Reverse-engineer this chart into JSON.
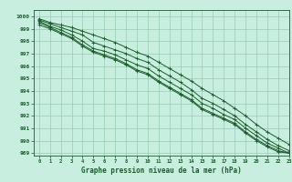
{
  "xlabel": "Graphe pression niveau de la mer (hPa)",
  "background_color": "#c8eee0",
  "plot_bg_color": "#c8eee0",
  "grid_color": "#99ccb3",
  "line_color": "#1a5c2a",
  "xlim": [
    -0.5,
    23
  ],
  "ylim": [
    988.8,
    1000.5
  ],
  "yticks": [
    989,
    990,
    991,
    992,
    993,
    994,
    995,
    996,
    997,
    998,
    999,
    1000
  ],
  "xticks": [
    0,
    1,
    2,
    3,
    4,
    5,
    6,
    7,
    8,
    9,
    10,
    11,
    12,
    13,
    14,
    15,
    16,
    17,
    18,
    19,
    20,
    21,
    22,
    23
  ],
  "lines": [
    {
      "x": [
        0,
        1,
        2,
        3,
        4,
        5,
        6,
        7,
        8,
        9,
        10,
        11,
        12,
        13,
        14,
        15,
        16,
        17,
        18,
        19,
        20,
        21,
        22,
        23
      ],
      "y": [
        999.8,
        999.5,
        999.3,
        999.1,
        998.8,
        998.5,
        998.2,
        997.9,
        997.5,
        997.1,
        996.8,
        996.3,
        995.8,
        995.3,
        994.8,
        994.2,
        993.7,
        993.2,
        992.6,
        992.0,
        991.3,
        990.7,
        990.2,
        989.7
      ]
    },
    {
      "x": [
        0,
        1,
        2,
        3,
        4,
        5,
        6,
        7,
        8,
        9,
        10,
        11,
        12,
        13,
        14,
        15,
        16,
        17,
        18,
        19,
        20,
        21,
        22,
        23
      ],
      "y": [
        999.7,
        999.4,
        999.1,
        998.8,
        998.5,
        997.9,
        997.6,
        997.3,
        997.0,
        996.6,
        996.3,
        995.7,
        995.2,
        994.7,
        994.1,
        993.4,
        993.0,
        992.5,
        992.0,
        991.3,
        990.7,
        990.1,
        989.6,
        989.2
      ]
    },
    {
      "x": [
        0,
        1,
        2,
        3,
        4,
        5,
        6,
        7,
        8,
        9,
        10,
        11,
        12,
        13,
        14,
        15,
        16,
        17,
        18,
        19,
        20,
        21,
        22,
        23
      ],
      "y": [
        999.6,
        999.2,
        998.9,
        998.5,
        998.0,
        997.4,
        997.2,
        996.9,
        996.5,
        996.1,
        995.8,
        995.2,
        994.7,
        994.2,
        993.7,
        993.0,
        992.6,
        992.1,
        991.7,
        991.0,
        990.4,
        989.8,
        989.4,
        989.0
      ]
    },
    {
      "x": [
        0,
        1,
        2,
        3,
        4,
        5,
        6,
        7,
        8,
        9,
        10,
        11,
        12,
        13,
        14,
        15,
        16,
        17,
        18,
        19,
        20,
        21,
        22,
        23
      ],
      "y": [
        999.5,
        999.1,
        998.7,
        998.3,
        997.7,
        997.2,
        996.9,
        996.6,
        996.2,
        995.7,
        995.4,
        994.8,
        994.3,
        993.8,
        993.3,
        992.6,
        992.2,
        991.8,
        991.4,
        990.7,
        990.1,
        989.6,
        989.2,
        989.0
      ]
    },
    {
      "x": [
        0,
        1,
        2,
        3,
        4,
        5,
        6,
        7,
        8,
        9,
        10,
        11,
        12,
        13,
        14,
        15,
        16,
        17,
        18,
        19,
        20,
        21,
        22,
        23
      ],
      "y": [
        999.3,
        999.0,
        998.6,
        998.2,
        997.6,
        997.1,
        996.8,
        996.5,
        996.1,
        995.6,
        995.3,
        994.7,
        994.2,
        993.7,
        993.2,
        992.5,
        992.1,
        991.7,
        991.3,
        990.6,
        990.0,
        989.5,
        989.1,
        989.0
      ]
    }
  ]
}
